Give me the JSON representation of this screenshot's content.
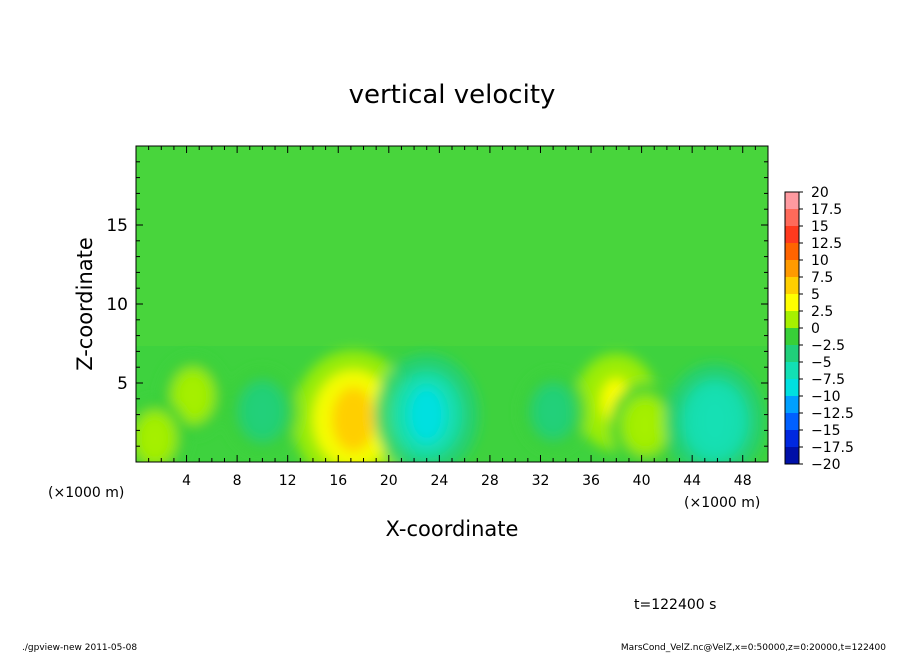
{
  "chart_data": {
    "type": "heatmap",
    "title": "vertical velocity",
    "xlabel": "X-coordinate",
    "ylabel": "Z-coordinate",
    "x_unit_left": "(×1000 m)",
    "x_unit_right": "(×1000 m)",
    "xlim": [
      0,
      50
    ],
    "ylim": [
      0,
      20
    ],
    "x_ticks": [
      4,
      8,
      12,
      16,
      20,
      24,
      28,
      32,
      36,
      40,
      44,
      48
    ],
    "y_ticks": [
      5,
      10,
      15
    ],
    "colorbar": {
      "range": [
        -20,
        20
      ],
      "labels": [
        "20",
        "17.5",
        "15",
        "12.5",
        "10",
        "7.5",
        "5",
        "2.5",
        "0",
        "−2.5",
        "−5",
        "−7.5",
        "−10",
        "−12.5",
        "−15",
        "−17.5",
        "−20"
      ],
      "colors": [
        "#ff9aa0",
        "#ff6a5a",
        "#ff3a1e",
        "#ff6400",
        "#ff9a00",
        "#ffcf00",
        "#ffff00",
        "#a6f000",
        "#38d038",
        "#20d07a",
        "#12e0b4",
        "#00e0e0",
        "#00a0ff",
        "#0060ff",
        "#0028e0",
        "#0010a8",
        "#6a1aa0"
      ]
    },
    "features": [
      {
        "x": 17.2,
        "z": 2.7,
        "w": 8.0,
        "label": "updraft"
      },
      {
        "x": 38.0,
        "z": 3.8,
        "w": 4.5,
        "label": "updraft"
      },
      {
        "x": 40.3,
        "z": 2.3,
        "w": 3.5,
        "label": "updraft"
      },
      {
        "x": 4.5,
        "z": 4.2,
        "w": 3.0,
        "label": "updraft"
      },
      {
        "x": 1.5,
        "z": 1.5,
        "w": 3.0,
        "label": "updraft"
      },
      {
        "x": 23.0,
        "z": 3.0,
        "w": -6.5,
        "label": "downdraft"
      },
      {
        "x": 45.8,
        "z": 2.6,
        "w": -6.0,
        "label": "downdraft"
      },
      {
        "x": 10.0,
        "z": 3.2,
        "w": -3.5,
        "label": "downdraft"
      },
      {
        "x": 33.0,
        "z": 3.2,
        "w": -3.0,
        "label": "downdraft"
      }
    ]
  },
  "annotations": {
    "time": "t=122400 s",
    "footer_left": "./gpview-new   2011-05-08",
    "footer_right": "MarsCond_VelZ.nc@VelZ,x=0:50000,z=0:20000,t=122400"
  }
}
